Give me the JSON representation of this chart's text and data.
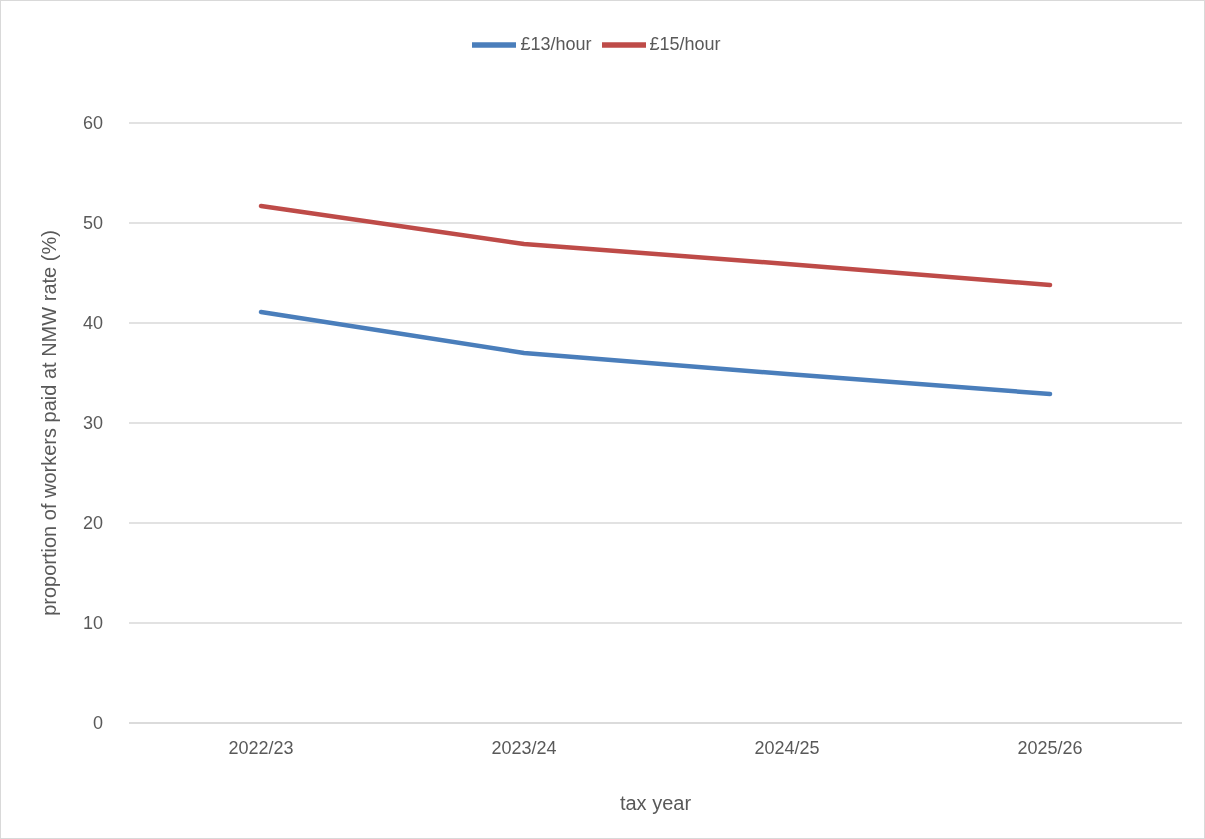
{
  "chart_data": {
    "type": "line",
    "xlabel": "tax year",
    "ylabel": "proportion of workers paid at NMW rate (%)",
    "categories": [
      "2022/23",
      "2023/24",
      "2024/25",
      "2025/26"
    ],
    "series": [
      {
        "name": "£13/hour",
        "color": "#4a7ebb",
        "values": [
          41.1,
          37.0,
          34.9,
          32.9
        ]
      },
      {
        "name": "£15/hour",
        "color": "#be4b48",
        "values": [
          51.7,
          47.9,
          45.9,
          43.8
        ]
      }
    ],
    "ylim": [
      0,
      60
    ],
    "yticks": [
      0,
      10,
      20,
      30,
      40,
      50,
      60
    ],
    "grid": "y",
    "legend": "top",
    "marker": "none",
    "line_style": "solid"
  }
}
